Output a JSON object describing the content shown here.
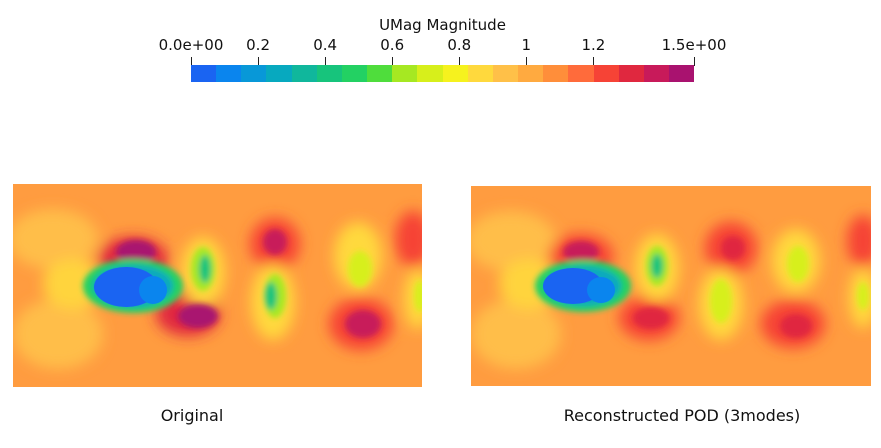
{
  "legend": {
    "title": "UMag Magnitude",
    "ticks": [
      {
        "label": "0.0e+00",
        "value": 0.0
      },
      {
        "label": "0.2",
        "value": 0.2
      },
      {
        "label": "0.4",
        "value": 0.4
      },
      {
        "label": "0.6",
        "value": 0.6
      },
      {
        "label": "0.8",
        "value": 0.8
      },
      {
        "label": "1",
        "value": 1.0
      },
      {
        "label": "1.2",
        "value": 1.2
      },
      {
        "label": "1.5e+00",
        "value": 1.5
      }
    ],
    "range": [
      0.0,
      1.5
    ],
    "colors": [
      "#1a64f2",
      "#0a85ee",
      "#0898d8",
      "#07a9bf",
      "#10b79c",
      "#17c47c",
      "#23d163",
      "#4fdd3c",
      "#a6e822",
      "#d7ef1b",
      "#f6f21e",
      "#ffd93d",
      "#ffc048",
      "#ffaa40",
      "#ff8e3a",
      "#ff6b3b",
      "#f64336",
      "#e0283f",
      "#c81a5a",
      "#a9126f"
    ]
  },
  "panels": [
    {
      "caption": "Original"
    },
    {
      "caption": "Reconstructed POD (3modes)"
    }
  ]
}
